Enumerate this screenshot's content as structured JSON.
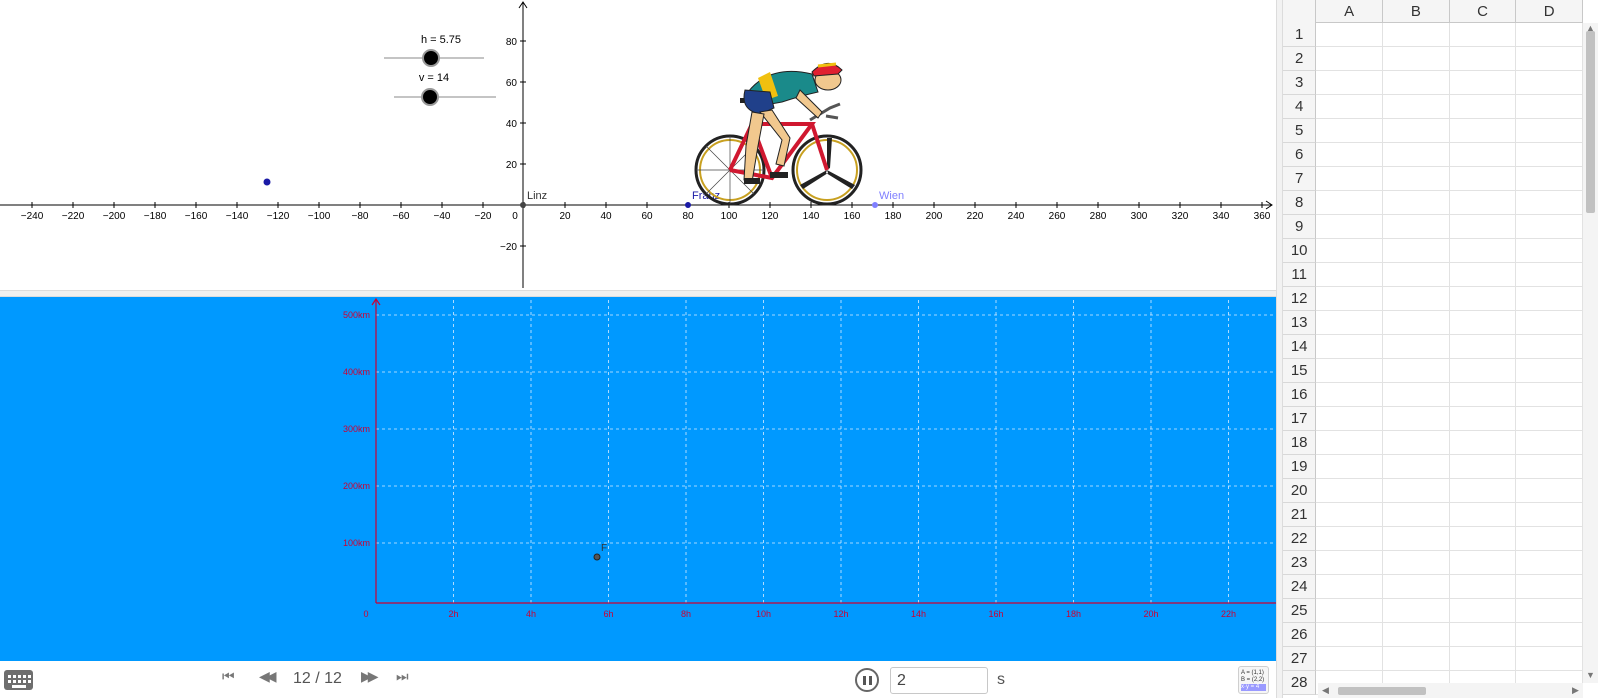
{
  "graphics1": {
    "slider_h_label": "h = 5.75",
    "slider_v_label": "v = 14",
    "slider_h_value": 5.75,
    "slider_v_value": 14,
    "x_ticks": [
      "−240",
      "−220",
      "−200",
      "−180",
      "−160",
      "−140",
      "−120",
      "−100",
      "−80",
      "−60",
      "−40",
      "−20",
      "0",
      "20",
      "40",
      "60",
      "80",
      "100",
      "120",
      "140",
      "160",
      "180",
      "200",
      "220",
      "240",
      "260",
      "280",
      "300",
      "320",
      "340",
      "360"
    ],
    "y_ticks": [
      "80",
      "60",
      "40",
      "20",
      "−20"
    ],
    "point_linz": "Linz",
    "point_franz": "Franz",
    "point_wien": "Wien",
    "colors": {
      "franz": "#1a1aa6",
      "wien": "#7f7fff",
      "axis": "#000000"
    }
  },
  "graphics2": {
    "y_ticks": [
      "500km",
      "400km",
      "300km",
      "200km",
      "100km"
    ],
    "x_ticks": [
      "0",
      "2h",
      "4h",
      "6h",
      "8h",
      "10h",
      "12h",
      "14h",
      "16h",
      "18h",
      "20h",
      "22h"
    ],
    "point_f_label": "F",
    "colors": {
      "background": "#0099ff",
      "axis": "#cc0033",
      "grid": "#d8ecff"
    }
  },
  "spreadsheet": {
    "columns": [
      "A",
      "B",
      "C",
      "D"
    ],
    "rows": [
      "1",
      "2",
      "3",
      "4",
      "5",
      "6",
      "7",
      "8",
      "9",
      "10",
      "11",
      "12",
      "13",
      "14",
      "15",
      "16",
      "17",
      "18",
      "19",
      "20",
      "21",
      "22",
      "23",
      "24",
      "25",
      "26",
      "27",
      "28"
    ]
  },
  "toolbar": {
    "step_counter": "12 / 12",
    "speed_value": "2",
    "speed_unit": "s",
    "algebra_lines": [
      "A = (1,1)",
      "B = (2,2)",
      "x·y = 4"
    ],
    "icons": [
      "keyboard-icon",
      "skip-first-icon",
      "step-back-icon",
      "step-forward-icon",
      "skip-last-icon",
      "pause-icon",
      "algebra-view-icon"
    ]
  }
}
